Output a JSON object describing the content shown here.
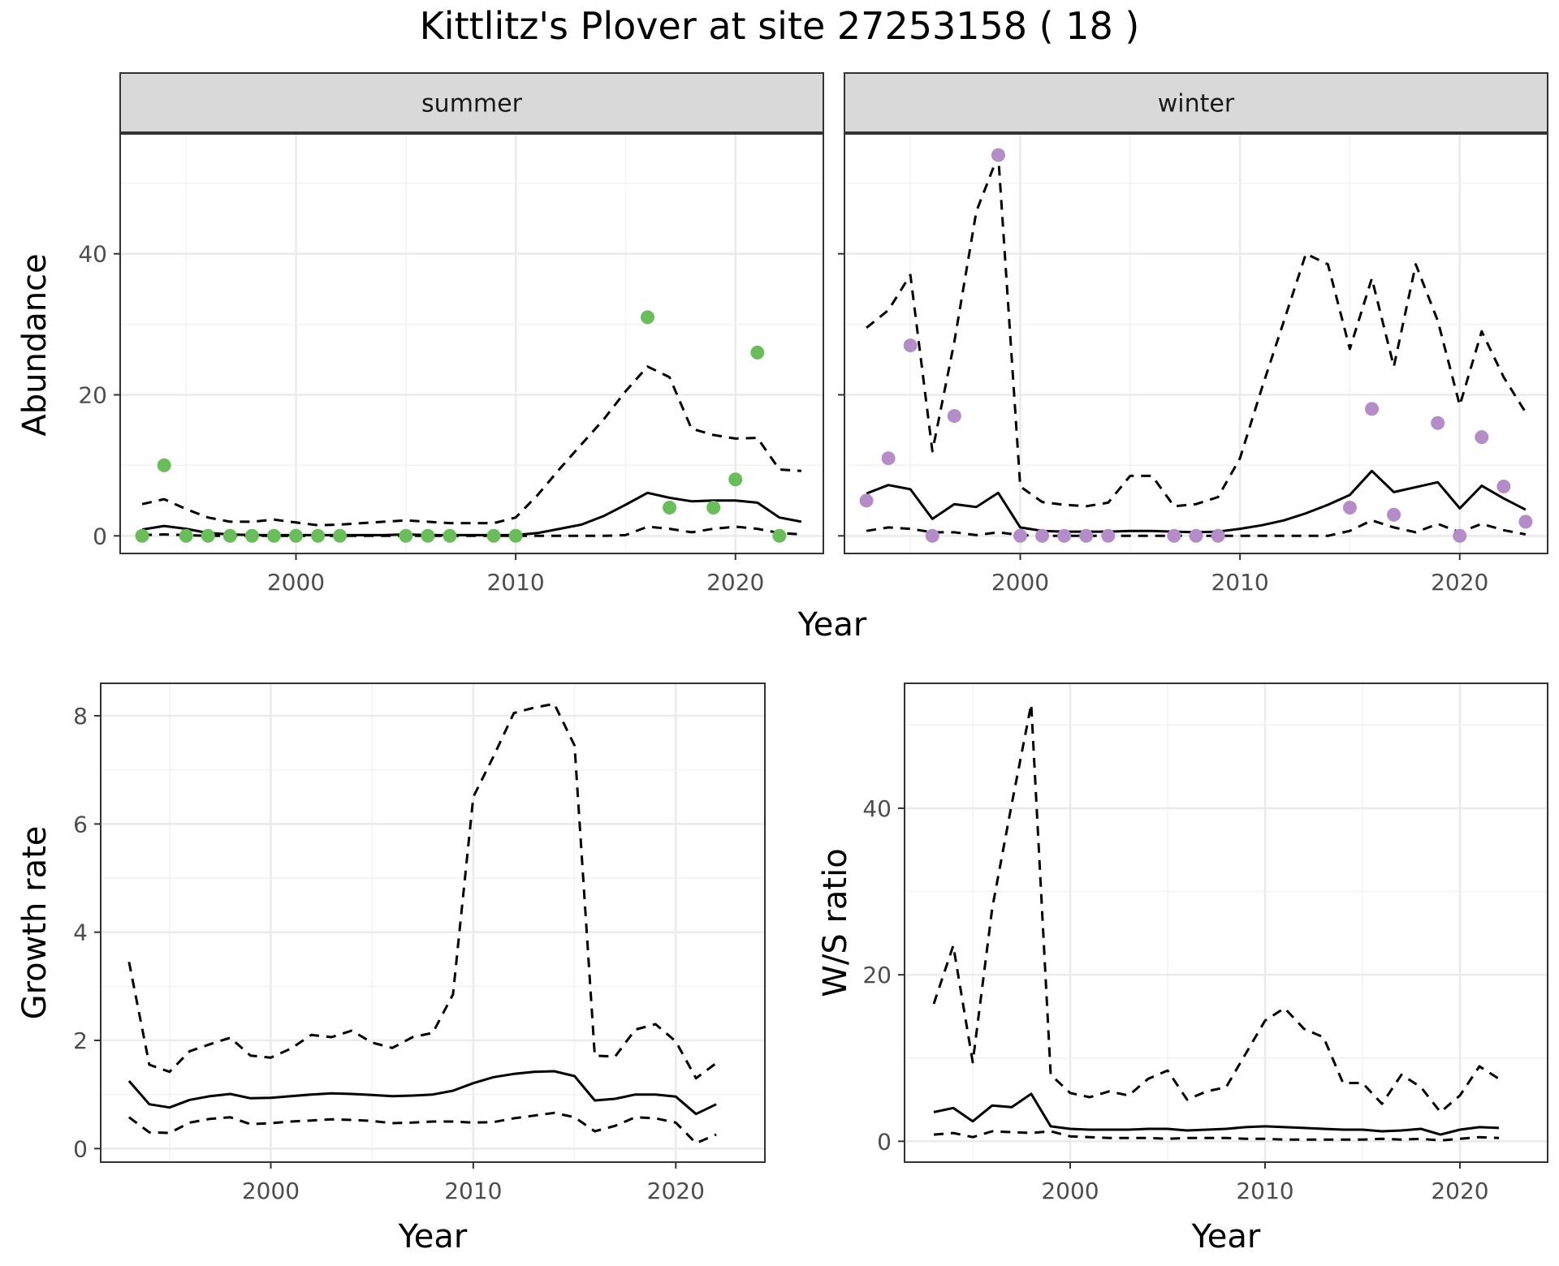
{
  "title": "Kittlitz's Plover at site 27253158 ( 18 )",
  "colors": {
    "summer_points": "#6abd5a",
    "winter_points": "#b38cc8",
    "line": "#000000",
    "grid_major": "#ebebeb",
    "grid_minor": "#f2f2f2",
    "strip_fill": "#d9d9d9"
  },
  "chart_data": [
    {
      "id": "summer",
      "type": "line",
      "facet_label": "summer",
      "xlabel": "",
      "ylabel": "Abundance",
      "xlim": [
        1992,
        2024
      ],
      "ylim": [
        -2.5,
        57
      ],
      "xticks": [
        2000,
        2010,
        2020
      ],
      "yticks": [
        0,
        20,
        40
      ],
      "grid": true,
      "series": [
        {
          "role": "mean",
          "x": [
            1993,
            1994,
            1995,
            1996,
            1997,
            1998,
            1999,
            2000,
            2001,
            2002,
            2003,
            2004,
            2005,
            2006,
            2007,
            2008,
            2009,
            2010,
            2011,
            2012,
            2013,
            2014,
            2015,
            2016,
            2017,
            2018,
            2019,
            2020,
            2021,
            2022,
            2023
          ],
          "values": [
            0.9,
            1.4,
            1.0,
            0.4,
            0.2,
            0.1,
            0.1,
            0.1,
            0.1,
            0.1,
            0.1,
            0.1,
            0.2,
            0.1,
            0.1,
            0.1,
            0.1,
            0.1,
            0.4,
            1.0,
            1.6,
            2.8,
            4.4,
            6.1,
            5.4,
            4.9,
            5.0,
            5.0,
            4.7,
            2.6,
            2.0
          ]
        },
        {
          "role": "upper",
          "x": [
            1993,
            1994,
            1995,
            1996,
            1997,
            1998,
            1999,
            2000,
            2001,
            2002,
            2003,
            2004,
            2005,
            2006,
            2007,
            2008,
            2009,
            2010,
            2011,
            2012,
            2013,
            2014,
            2015,
            2016,
            2017,
            2018,
            2019,
            2020,
            2021,
            2022,
            2023
          ],
          "values": [
            4.5,
            5.2,
            3.8,
            2.6,
            2.0,
            2.0,
            2.3,
            1.9,
            1.5,
            1.6,
            1.8,
            2.0,
            2.2,
            2.0,
            1.8,
            1.8,
            1.8,
            2.6,
            5.8,
            9.5,
            13.0,
            16.5,
            20.5,
            24.0,
            22.5,
            15.2,
            14.3,
            13.8,
            13.9,
            9.4,
            9.2
          ]
        },
        {
          "role": "lower",
          "x": [
            1993,
            1994,
            1995,
            1996,
            1997,
            1998,
            1999,
            2000,
            2001,
            2002,
            2003,
            2004,
            2005,
            2006,
            2007,
            2008,
            2009,
            2010,
            2011,
            2012,
            2013,
            2014,
            2015,
            2016,
            2017,
            2018,
            2019,
            2020,
            2021,
            2022,
            2023
          ],
          "values": [
            0.1,
            0.2,
            0.1,
            0.0,
            0.0,
            0.0,
            0.0,
            0.0,
            0.0,
            0.0,
            0.0,
            0.0,
            0.0,
            0.0,
            0.0,
            0.0,
            0.0,
            0.0,
            0.0,
            0.0,
            0.0,
            0.0,
            0.1,
            1.3,
            1.0,
            0.5,
            1.0,
            1.3,
            1.0,
            0.4,
            0.2
          ]
        }
      ],
      "points": {
        "x": [
          1993,
          1994,
          1995,
          1996,
          1997,
          1998,
          1999,
          2000,
          2001,
          2002,
          2005,
          2006,
          2007,
          2009,
          2010,
          2016,
          2017,
          2019,
          2020,
          2021,
          2022
        ],
        "y": [
          0,
          10,
          0,
          0,
          0,
          0,
          0,
          0,
          0,
          0,
          0,
          0,
          0,
          0,
          0,
          31,
          4,
          4,
          8,
          26,
          0
        ]
      }
    },
    {
      "id": "winter",
      "type": "line",
      "facet_label": "winter",
      "xlabel": "",
      "ylabel": "",
      "xlim": [
        1992,
        2024
      ],
      "ylim": [
        -2.5,
        57
      ],
      "xticks": [
        2000,
        2010,
        2020
      ],
      "yticks": [
        0,
        20,
        40
      ],
      "grid": true,
      "series": [
        {
          "role": "mean",
          "x": [
            1993,
            1994,
            1995,
            1996,
            1997,
            1998,
            1999,
            2000,
            2001,
            2002,
            2003,
            2004,
            2005,
            2006,
            2007,
            2008,
            2009,
            2010,
            2011,
            2012,
            2013,
            2014,
            2015,
            2016,
            2017,
            2018,
            2019,
            2020,
            2021,
            2022,
            2023
          ],
          "values": [
            6.0,
            7.2,
            6.6,
            2.4,
            4.5,
            4.1,
            6.1,
            1.2,
            0.7,
            0.6,
            0.6,
            0.6,
            0.7,
            0.7,
            0.6,
            0.5,
            0.6,
            1.0,
            1.5,
            2.2,
            3.2,
            4.4,
            5.8,
            9.2,
            6.2,
            6.9,
            7.6,
            3.9,
            7.1,
            5.3,
            3.7
          ]
        },
        {
          "role": "upper",
          "x": [
            1993,
            1994,
            1995,
            1996,
            1997,
            1998,
            1999,
            2000,
            2001,
            2002,
            2003,
            2004,
            2005,
            2006,
            2007,
            2008,
            2009,
            2010,
            2011,
            2012,
            2013,
            2014,
            2015,
            2016,
            2017,
            2018,
            2019,
            2020,
            2021,
            2022,
            2023
          ],
          "values": [
            29.5,
            32.0,
            37.0,
            12.0,
            27.5,
            46.0,
            54.0,
            7.0,
            4.8,
            4.4,
            4.2,
            4.7,
            8.5,
            8.5,
            4.2,
            4.5,
            5.5,
            11.0,
            21.0,
            30.5,
            40.0,
            38.5,
            26.5,
            36.5,
            24.0,
            38.5,
            30.5,
            18.5,
            29.0,
            22.5,
            17.5
          ]
        },
        {
          "role": "lower",
          "x": [
            1993,
            1994,
            1995,
            1996,
            1997,
            1998,
            1999,
            2000,
            2001,
            2002,
            2003,
            2004,
            2005,
            2006,
            2007,
            2008,
            2009,
            2010,
            2011,
            2012,
            2013,
            2014,
            2015,
            2016,
            2017,
            2018,
            2019,
            2020,
            2021,
            2022,
            2023
          ],
          "values": [
            0.7,
            1.2,
            1.0,
            0.5,
            0.5,
            0.1,
            0.5,
            0.1,
            0.0,
            0.0,
            0.0,
            0.0,
            0.0,
            0.0,
            0.0,
            0.0,
            0.0,
            0.0,
            0.0,
            0.0,
            0.0,
            0.0,
            0.7,
            2.2,
            1.2,
            0.5,
            1.7,
            0.5,
            1.7,
            0.8,
            0.2
          ]
        }
      ],
      "points": {
        "x": [
          1993,
          1994,
          1995,
          1996,
          1997,
          1999,
          2000,
          2001,
          2002,
          2003,
          2004,
          2007,
          2008,
          2009,
          2015,
          2016,
          2017,
          2019,
          2020,
          2021,
          2022,
          2023
        ],
        "y": [
          5,
          11,
          27,
          0,
          17,
          54,
          0,
          0,
          0,
          0,
          0,
          0,
          0,
          0,
          4,
          18,
          3,
          16,
          0,
          14,
          7,
          2
        ]
      }
    },
    {
      "id": "growth",
      "type": "line",
      "xlabel": "Year",
      "ylabel": "Growth rate",
      "xlim": [
        1991.6,
        2024.4
      ],
      "ylim": [
        -0.25,
        8.6
      ],
      "xticks": [
        2000,
        2010,
        2020
      ],
      "yticks": [
        0,
        2,
        4,
        6,
        8
      ],
      "grid": true,
      "series": [
        {
          "role": "mean",
          "x": [
            1993,
            1994,
            1995,
            1996,
            1997,
            1998,
            1999,
            2000,
            2001,
            2002,
            2003,
            2004,
            2005,
            2006,
            2007,
            2008,
            2009,
            2010,
            2011,
            2012,
            2013,
            2014,
            2015,
            2016,
            2017,
            2018,
            2019,
            2020,
            2021,
            2022
          ],
          "values": [
            1.25,
            0.82,
            0.76,
            0.9,
            0.97,
            1.01,
            0.93,
            0.94,
            0.97,
            1.0,
            1.02,
            1.01,
            0.99,
            0.97,
            0.98,
            1.0,
            1.07,
            1.21,
            1.32,
            1.38,
            1.42,
            1.43,
            1.34,
            0.89,
            0.92,
            1.0,
            1.0,
            0.96,
            0.64,
            0.82
          ]
        },
        {
          "role": "upper",
          "x": [
            1993,
            1994,
            1995,
            1996,
            1997,
            1998,
            1999,
            2000,
            2001,
            2002,
            2003,
            2004,
            2005,
            2006,
            2007,
            2008,
            2009,
            2010,
            2011,
            2012,
            2013,
            2014,
            2015,
            2016,
            2017,
            2018,
            2019,
            2020,
            2021,
            2022
          ],
          "values": [
            3.45,
            1.55,
            1.42,
            1.8,
            1.93,
            2.05,
            1.72,
            1.68,
            1.85,
            2.1,
            2.06,
            2.18,
            1.96,
            1.86,
            2.06,
            2.14,
            2.85,
            6.5,
            7.25,
            8.05,
            8.15,
            8.22,
            7.45,
            1.72,
            1.7,
            2.2,
            2.3,
            1.98,
            1.3,
            1.58
          ]
        },
        {
          "role": "lower",
          "x": [
            1993,
            1994,
            1995,
            1996,
            1997,
            1998,
            1999,
            2000,
            2001,
            2002,
            2003,
            2004,
            2005,
            2006,
            2007,
            2008,
            2009,
            2010,
            2011,
            2012,
            2013,
            2014,
            2015,
            2016,
            2017,
            2018,
            2019,
            2020,
            2021,
            2022
          ],
          "values": [
            0.58,
            0.3,
            0.29,
            0.48,
            0.55,
            0.58,
            0.45,
            0.47,
            0.5,
            0.52,
            0.54,
            0.53,
            0.51,
            0.47,
            0.48,
            0.5,
            0.5,
            0.48,
            0.49,
            0.56,
            0.61,
            0.66,
            0.58,
            0.32,
            0.42,
            0.58,
            0.56,
            0.48,
            0.1,
            0.26
          ]
        }
      ]
    },
    {
      "id": "ratio",
      "type": "line",
      "xlabel": "Year",
      "ylabel": "W/S ratio",
      "xlim": [
        1991.5,
        2024.5
      ],
      "ylim": [
        -2.5,
        55
      ],
      "xticks": [
        2000,
        2010,
        2020
      ],
      "yticks": [
        0,
        20,
        40
      ],
      "grid": true,
      "series": [
        {
          "role": "mean",
          "x": [
            1993,
            1994,
            1995,
            1996,
            1997,
            1998,
            1999,
            2000,
            2001,
            2002,
            2003,
            2004,
            2005,
            2006,
            2007,
            2008,
            2009,
            2010,
            2011,
            2012,
            2013,
            2014,
            2015,
            2016,
            2017,
            2018,
            2019,
            2020,
            2021,
            2022
          ],
          "values": [
            3.5,
            4.0,
            2.4,
            4.3,
            4.1,
            5.7,
            1.8,
            1.5,
            1.4,
            1.4,
            1.4,
            1.5,
            1.5,
            1.3,
            1.4,
            1.5,
            1.7,
            1.8,
            1.7,
            1.6,
            1.5,
            1.4,
            1.4,
            1.2,
            1.3,
            1.5,
            0.8,
            1.4,
            1.7,
            1.6
          ]
        },
        {
          "role": "upper",
          "x": [
            1993,
            1994,
            1995,
            1996,
            1997,
            1998,
            1999,
            2000,
            2001,
            2002,
            2003,
            2004,
            2005,
            2006,
            2007,
            2008,
            2009,
            2010,
            2011,
            2012,
            2013,
            2014,
            2015,
            2016,
            2017,
            2018,
            2019,
            2020,
            2021,
            2022
          ],
          "values": [
            16.5,
            23.5,
            9.5,
            28.0,
            40.5,
            52.5,
            8.0,
            5.8,
            5.3,
            6.0,
            5.5,
            7.5,
            8.5,
            5.0,
            6.0,
            6.5,
            10.5,
            14.5,
            16.0,
            13.5,
            12.5,
            7.0,
            7.0,
            4.5,
            8.0,
            6.5,
            3.5,
            5.5,
            9.0,
            7.5
          ]
        },
        {
          "role": "lower",
          "x": [
            1993,
            1994,
            1995,
            1996,
            1997,
            1998,
            1999,
            2000,
            2001,
            2002,
            2003,
            2004,
            2005,
            2006,
            2007,
            2008,
            2009,
            2010,
            2011,
            2012,
            2013,
            2014,
            2015,
            2016,
            2017,
            2018,
            2019,
            2020,
            2021,
            2022
          ],
          "values": [
            0.8,
            1.0,
            0.5,
            1.2,
            1.1,
            1.0,
            1.2,
            0.6,
            0.5,
            0.4,
            0.4,
            0.4,
            0.3,
            0.4,
            0.4,
            0.4,
            0.3,
            0.3,
            0.2,
            0.2,
            0.2,
            0.2,
            0.2,
            0.3,
            0.2,
            0.3,
            0.1,
            0.3,
            0.5,
            0.4
          ]
        }
      ]
    }
  ],
  "shared": {
    "top_xlabel": "Year"
  }
}
